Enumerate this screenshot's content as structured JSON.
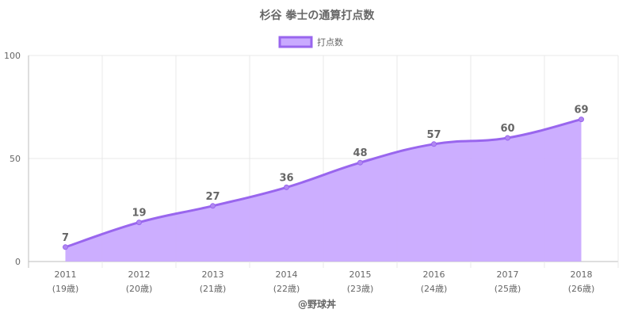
{
  "chart_data": {
    "type": "area",
    "title": "杉谷 拳士の通算打点数",
    "legend": {
      "position": "top",
      "entries": [
        "打点数"
      ]
    },
    "series": [
      {
        "name": "打点数",
        "values": [
          7,
          19,
          27,
          36,
          48,
          57,
          60,
          69
        ]
      }
    ],
    "categories": [
      "2011",
      "2012",
      "2013",
      "2014",
      "2015",
      "2016",
      "2017",
      "2018"
    ],
    "category_sublabels": [
      "(19歳)",
      "(20歳)",
      "(21歳)",
      "(22歳)",
      "(23歳)",
      "(24歳)",
      "(25歳)",
      "(26歳)"
    ],
    "y_ticks": [
      "0",
      "50",
      "100"
    ],
    "ylim": [
      0,
      100
    ],
    "grid": true,
    "colors": {
      "line": "#9966ee",
      "fill": "#c9aaff",
      "point": "#b088f0",
      "grid": "#e8e8e8",
      "axis": "#bdbdbd",
      "text": "#666666"
    }
  },
  "footer": {
    "credit": "@野球丼"
  }
}
